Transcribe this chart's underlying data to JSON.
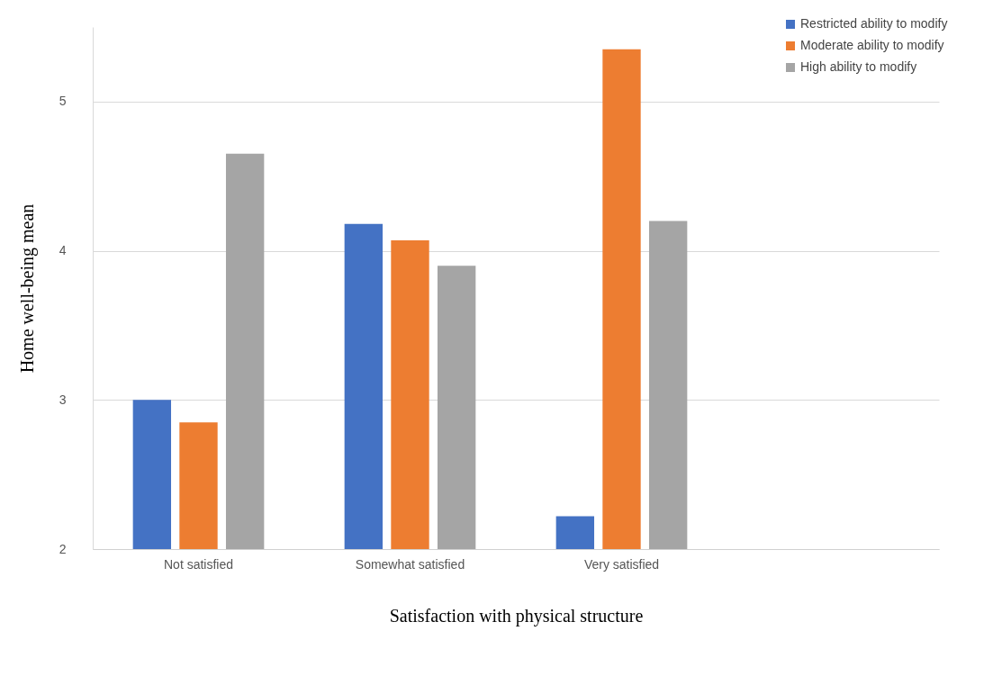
{
  "chart_data": {
    "type": "bar",
    "xlabel": "Satisfaction with physical structure",
    "ylabel": "Home well-being mean",
    "categories": [
      "Not satisfied",
      "Somewhat satisfied",
      "Very satisfied",
      null
    ],
    "series": [
      {
        "name": "Restricted ability to modify",
        "color": "#4472c4",
        "values": [
          3.0,
          4.18,
          2.22,
          null
        ]
      },
      {
        "name": "Moderate ability to modify",
        "color": "#ed7d31",
        "values": [
          2.85,
          4.07,
          5.35,
          null
        ]
      },
      {
        "name": "High ability to modify",
        "color": "#a5a5a5",
        "values": [
          4.65,
          3.9,
          4.2,
          null
        ]
      }
    ],
    "ylim": [
      2,
      5.5
    ],
    "yticks": [
      2,
      3,
      4,
      5
    ],
    "grid": "y",
    "legend": "top right"
  }
}
